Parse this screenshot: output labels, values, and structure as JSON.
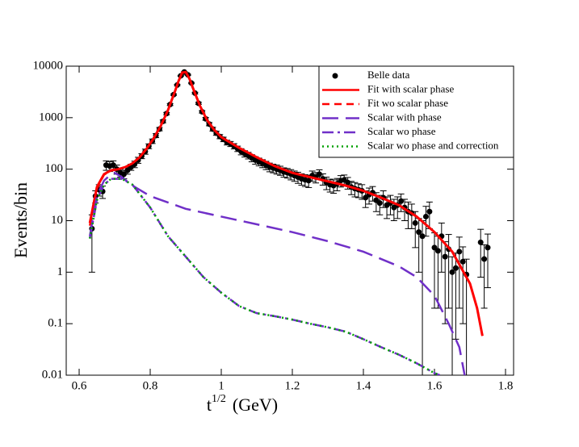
{
  "chart_data": {
    "type": "line",
    "yscale": "log",
    "legend": "upper right",
    "xlabel": {
      "base": "t",
      "sup": "1/2",
      "unit": "(GeV)"
    },
    "ylabel": "Events/bin",
    "xlim": [
      0.5636,
      1.8227
    ],
    "ylim": [
      0.01,
      10000
    ],
    "xticks": [
      0.6,
      0.8,
      1,
      1.2,
      1.4,
      1.6,
      1.8
    ],
    "yticks": [
      0.01,
      0.1,
      1,
      10,
      100,
      1000,
      10000
    ],
    "series": [
      {
        "name": "Belle data",
        "style": "points",
        "color": "#000000",
        "x": [
          0.636,
          0.646,
          0.656,
          0.666,
          0.676,
          0.686,
          0.696,
          0.706,
          0.716,
          0.726,
          0.736,
          0.746,
          0.756,
          0.766,
          0.776,
          0.786,
          0.796,
          0.806,
          0.816,
          0.826,
          0.836,
          0.846,
          0.856,
          0.866,
          0.876,
          0.886,
          0.896,
          0.906,
          0.916,
          0.926,
          0.936,
          0.946,
          0.956,
          0.966,
          0.976,
          0.986,
          0.996,
          1.006,
          1.016,
          1.026,
          1.036,
          1.046,
          1.056,
          1.066,
          1.076,
          1.086,
          1.096,
          1.106,
          1.116,
          1.126,
          1.136,
          1.146,
          1.156,
          1.166,
          1.176,
          1.186,
          1.196,
          1.206,
          1.216,
          1.226,
          1.236,
          1.246,
          1.256,
          1.266,
          1.276,
          1.286,
          1.296,
          1.306,
          1.316,
          1.326,
          1.336,
          1.346,
          1.356,
          1.366,
          1.376,
          1.386,
          1.396,
          1.406,
          1.416,
          1.426,
          1.436,
          1.446,
          1.456,
          1.466,
          1.476,
          1.486,
          1.496,
          1.506,
          1.516,
          1.526,
          1.536,
          1.546,
          1.556,
          1.566,
          1.576,
          1.586,
          1.6,
          1.61,
          1.62,
          1.63,
          1.64,
          1.65,
          1.66,
          1.67,
          1.68,
          1.69,
          1.73,
          1.74,
          1.75
        ],
        "values": [
          7,
          30,
          40,
          37,
          120,
          115,
          120,
          100,
          85,
          80,
          95,
          110,
          125,
          150,
          180,
          220,
          280,
          350,
          450,
          600,
          850,
          1200,
          1800,
          2800,
          4300,
          6500,
          7700,
          6800,
          4700,
          3000,
          1900,
          1300,
          950,
          750,
          600,
          500,
          430,
          380,
          330,
          310,
          280,
          250,
          220,
          200,
          185,
          165,
          150,
          140,
          130,
          120,
          110,
          105,
          100,
          95,
          88,
          85,
          80,
          75,
          70,
          65,
          62,
          60,
          75,
          70,
          80,
          65,
          55,
          50,
          48,
          52,
          60,
          62,
          55,
          45,
          42,
          40,
          38,
          28,
          32,
          35,
          25,
          22,
          28,
          20,
          22,
          18,
          20,
          24,
          18,
          15,
          14,
          9,
          6,
          5,
          12,
          15,
          3,
          2.6,
          5,
          2,
          2.8,
          1,
          1.2,
          2.5,
          1.6,
          0.9,
          3.8,
          1.8,
          3
        ],
        "errors": [
          6,
          8,
          10,
          10,
          25,
          25,
          25,
          20,
          15,
          15,
          15,
          15,
          18,
          20,
          20,
          25,
          30,
          35,
          40,
          45,
          55,
          65,
          80,
          100,
          130,
          160,
          175,
          165,
          140,
          110,
          90,
          70,
          60,
          55,
          50,
          45,
          40,
          38,
          35,
          35,
          33,
          30,
          30,
          28,
          27,
          26,
          25,
          24,
          23,
          22,
          21,
          20,
          20,
          19,
          18,
          18,
          18,
          17,
          17,
          16,
          16,
          16,
          17,
          16,
          17,
          16,
          15,
          14,
          14,
          14,
          15,
          15,
          14,
          13,
          13,
          12,
          12,
          10,
          11,
          11,
          10,
          9,
          10,
          9,
          9,
          8,
          9,
          9,
          8,
          8,
          7,
          6,
          5,
          5,
          7,
          8,
          2.8,
          2.4,
          4,
          1.9,
          2.6,
          0.99,
          1.15,
          2.3,
          1.5,
          0.89,
          3,
          1.6,
          2.5
        ]
      },
      {
        "name": "Fit with scalar phase",
        "style": "solid",
        "color": "#ff0000",
        "x": [
          0.63,
          0.65,
          0.67,
          0.69,
          0.71,
          0.73,
          0.75,
          0.77,
          0.79,
          0.81,
          0.83,
          0.85,
          0.87,
          0.88,
          0.89,
          0.9,
          0.91,
          0.92,
          0.94,
          0.96,
          0.98,
          1.0,
          1.05,
          1.1,
          1.15,
          1.2,
          1.25,
          1.3,
          1.35,
          1.4,
          1.45,
          1.5,
          1.55,
          1.6,
          1.65,
          1.7,
          1.72,
          1.735
        ],
        "values": [
          9,
          45,
          80,
          95,
          100,
          110,
          130,
          170,
          250,
          400,
          700,
          1400,
          3300,
          5200,
          7500,
          7700,
          5800,
          3800,
          1700,
          900,
          580,
          420,
          260,
          170,
          115,
          85,
          70,
          58,
          48,
          38,
          28,
          20,
          12,
          6,
          2.5,
          0.6,
          0.2,
          0.058
        ]
      },
      {
        "name": "Fit wo scalar phase",
        "style": "dashed",
        "color": "#ff0000",
        "x": [
          0.63,
          0.65,
          0.67,
          0.69,
          0.71,
          0.73,
          0.75,
          0.77,
          0.79,
          0.81,
          0.83,
          0.85,
          0.87,
          0.88,
          0.89,
          0.9,
          0.91,
          0.92,
          0.94,
          0.96,
          0.98,
          1.0,
          1.05,
          1.1,
          1.15,
          1.2,
          1.25,
          1.3,
          1.35,
          1.4,
          1.45,
          1.5,
          1.55,
          1.6,
          1.65,
          1.7,
          1.72,
          1.735
        ],
        "values": [
          8,
          42,
          78,
          94,
          100,
          110,
          130,
          170,
          250,
          400,
          700,
          1400,
          3300,
          5200,
          7500,
          7700,
          5800,
          3800,
          1700,
          900,
          580,
          420,
          260,
          170,
          115,
          85,
          70,
          58,
          48,
          38,
          28,
          20,
          12,
          6,
          2.5,
          0.6,
          0.2,
          0.058
        ]
      },
      {
        "name": "Scalar with phase",
        "style": "longdash",
        "color": "#7030c8",
        "x": [
          0.63,
          0.65,
          0.67,
          0.69,
          0.7,
          0.72,
          0.75,
          0.8,
          0.9,
          1.0,
          1.1,
          1.2,
          1.3,
          1.4,
          1.5,
          1.55,
          1.6,
          1.64,
          1.67,
          1.685
        ],
        "values": [
          5,
          30,
          60,
          80,
          85,
          70,
          48,
          30,
          17,
          12,
          8.5,
          6,
          4,
          2.5,
          1.3,
          0.8,
          0.35,
          0.1,
          0.035,
          0.01
        ]
      },
      {
        "name": "Scalar wo phase",
        "style": "dashdot",
        "color": "#7030c8",
        "x": [
          0.63,
          0.65,
          0.67,
          0.69,
          0.72,
          0.75,
          0.8,
          0.85,
          0.9,
          0.95,
          1.0,
          1.05,
          1.1,
          1.15,
          1.2,
          1.25,
          1.3,
          1.35,
          1.4,
          1.45,
          1.5,
          1.55,
          1.6,
          1.615
        ],
        "values": [
          4.5,
          25,
          50,
          65,
          65,
          50,
          18,
          5,
          2,
          0.8,
          0.4,
          0.22,
          0.16,
          0.14,
          0.12,
          0.1,
          0.085,
          0.07,
          0.05,
          0.035,
          0.025,
          0.017,
          0.011,
          0.01
        ]
      },
      {
        "name": "Scalar wo phase and correction",
        "style": "dotted",
        "color": "#00a000",
        "x": [
          0.63,
          0.65,
          0.67,
          0.69,
          0.72,
          0.75,
          0.8,
          0.85,
          0.9,
          0.95,
          1.0,
          1.05,
          1.1,
          1.15,
          1.2,
          1.25,
          1.3,
          1.35,
          1.4,
          1.45,
          1.5,
          1.55,
          1.6,
          1.615
        ],
        "values": [
          4.5,
          25,
          50,
          65,
          65,
          50,
          18,
          5,
          2,
          0.8,
          0.4,
          0.22,
          0.16,
          0.14,
          0.12,
          0.1,
          0.085,
          0.07,
          0.05,
          0.035,
          0.025,
          0.017,
          0.011,
          0.01
        ]
      }
    ]
  }
}
